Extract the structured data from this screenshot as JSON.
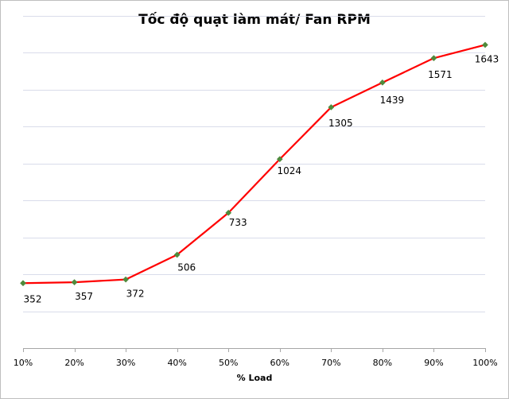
{
  "chart_data": {
    "type": "line",
    "title": "Tốc độ quạt làm mát/ Fan RPM",
    "xlabel": "% Load",
    "ylabel": "",
    "categories": [
      "10%",
      "20%",
      "30%",
      "40%",
      "50%",
      "60%",
      "70%",
      "80%",
      "90%",
      "100%"
    ],
    "series": [
      {
        "values": [
          352,
          357,
          372,
          506,
          733,
          1024,
          1305,
          1439,
          1571,
          1643
        ]
      }
    ],
    "ylim": [
      0,
      1800
    ],
    "grid": true,
    "legend": "none",
    "colors": {
      "line": "#ff0000",
      "marker": "#4f8a3c",
      "grid": "#d9dcea",
      "axis": "#a6a6a6"
    }
  }
}
